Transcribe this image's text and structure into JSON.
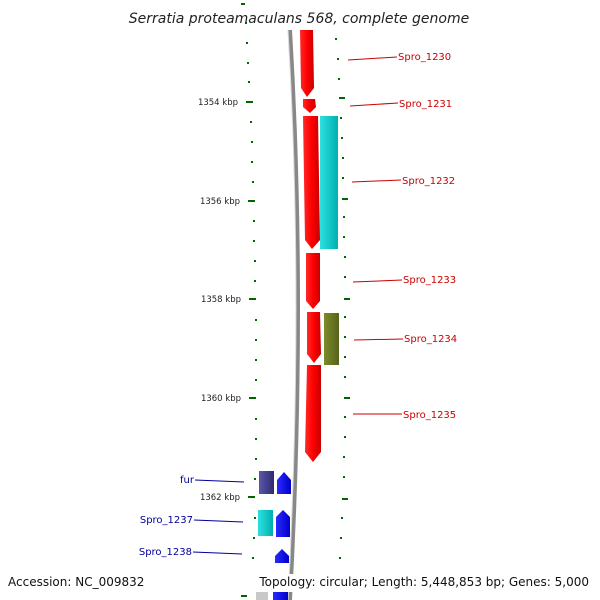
{
  "title": "Serratia proteamaculans 568, complete genome",
  "footer": {
    "accession": "Accession: NC_009832",
    "topology": "Topology: circular; Length: 5,448,853 bp; Genes: 5,000"
  },
  "axis_ticks": [
    {
      "label": "1354 kbp"
    },
    {
      "label": "1356 kbp"
    },
    {
      "label": "1358 kbp"
    },
    {
      "label": "1360 kbp"
    },
    {
      "label": "1362 kbp"
    }
  ],
  "genes_right": [
    {
      "label": "Spro_1230"
    },
    {
      "label": "Spro_1231"
    },
    {
      "label": "Spro_1232"
    },
    {
      "label": "Spro_1233"
    },
    {
      "label": "Spro_1234"
    },
    {
      "label": "Spro_1235"
    }
  ],
  "genes_left": [
    {
      "label": "fur"
    },
    {
      "label": "Spro_1237"
    },
    {
      "label": "Spro_1238"
    }
  ],
  "colors": {
    "forward_strand_genes": "#ff0000",
    "reverse_strand_genes": "#0000ff",
    "cyan_feature": "#00cccc",
    "olive_feature": "#6b7a1f",
    "purple_feature": "#3f3a8c",
    "backbone": "#888888",
    "ticks": "#006600",
    "red_labels": "#cc0000",
    "blue_labels": "#000099"
  }
}
